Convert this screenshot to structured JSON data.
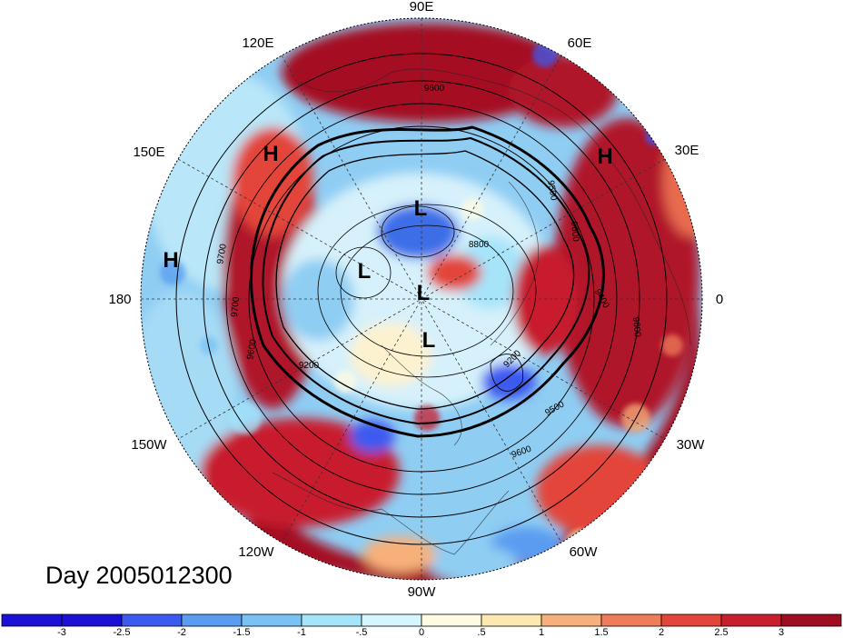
{
  "map": {
    "projection": "north-polar-stereographic",
    "longitude_labels": [
      "90E",
      "60E",
      "30E",
      "0",
      "30W",
      "60W",
      "90W",
      "120W",
      "150W",
      "180",
      "150E",
      "120E"
    ],
    "pressure_system_labels": [
      "H",
      "H",
      "H",
      "L",
      "L",
      "L",
      "L"
    ],
    "contour_labels": [
      "9600",
      "9700",
      "9700",
      "9600",
      "9200",
      "9500",
      "9600",
      "8800",
      "9400",
      "9600",
      "9200",
      "9600",
      "9500"
    ],
    "contour_color": "#000000"
  },
  "day_label": "Day 2005012300",
  "colorbar": {
    "tick_labels": [
      "-3",
      "-2.5",
      "-2",
      "-1.5",
      "-1",
      "-.5",
      "0",
      ".5",
      "1",
      "1.5",
      "2",
      "2.5",
      "3"
    ],
    "colors": [
      "#1a10d6",
      "#3c5af0",
      "#5a9cf0",
      "#7ac2f5",
      "#a6e4fa",
      "#d6f6fd",
      "#fefbe2",
      "#fde8b0",
      "#f7b07a",
      "#ef7d5a",
      "#e3453a",
      "#c81e2e",
      "#9e0e20"
    ]
  }
}
